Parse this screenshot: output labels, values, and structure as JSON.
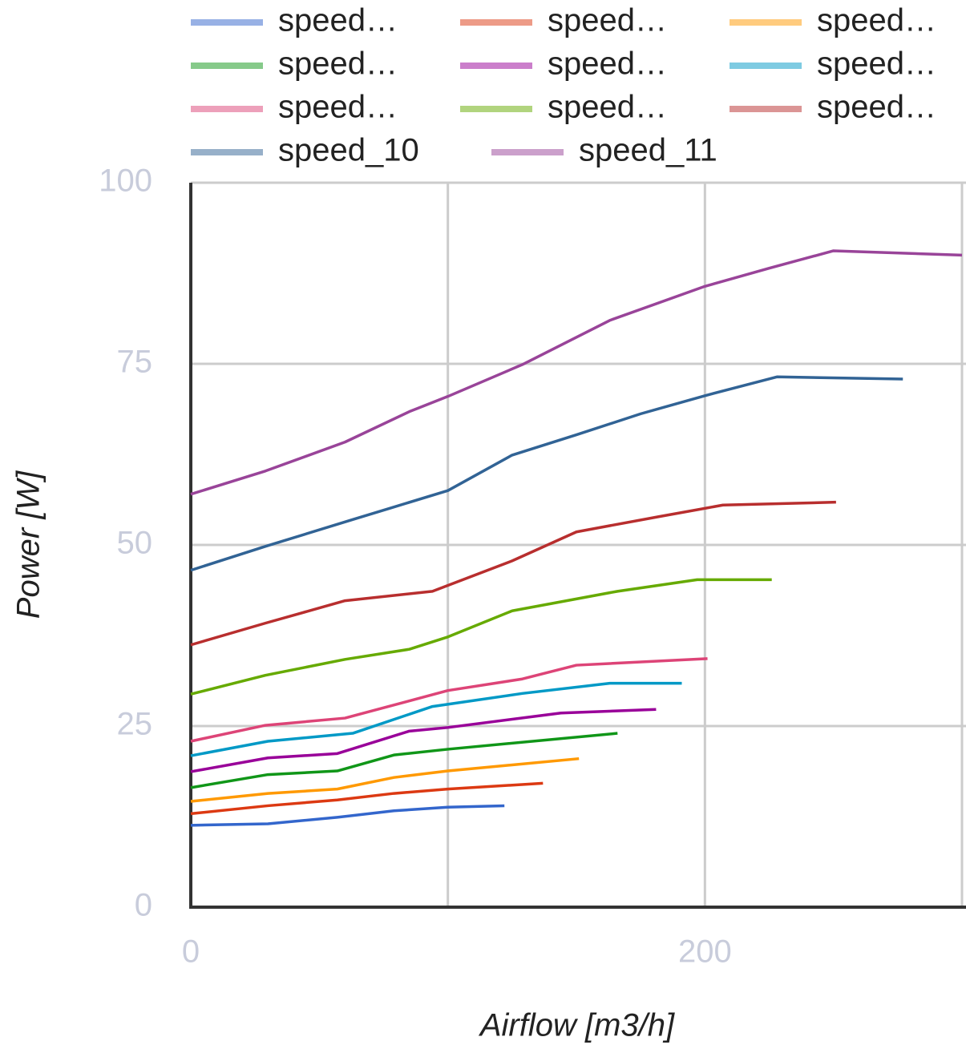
{
  "chart_data": {
    "type": "line",
    "xlabel": "Airflow [m3/h]",
    "ylabel": "Power [W]",
    "xlim": [
      0,
      300
    ],
    "ylim": [
      0,
      100
    ],
    "xticks": [
      0,
      200
    ],
    "xgrid_lines": [
      100,
      200,
      300
    ],
    "yticks": [
      0,
      25,
      50,
      75,
      100
    ],
    "grid": true,
    "series": [
      {
        "name": "speed…",
        "color": "#3366cc",
        "x": [
          0,
          30,
          57,
          79,
          100,
          122
        ],
        "values": [
          11.3,
          11.5,
          12.4,
          13.3,
          13.8,
          14.0
        ]
      },
      {
        "name": "speed…",
        "color": "#dc3912",
        "x": [
          0,
          30,
          57,
          79,
          100,
          137
        ],
        "values": [
          12.9,
          14.0,
          14.8,
          15.7,
          16.3,
          17.1
        ]
      },
      {
        "name": "speed…",
        "color": "#ff9900",
        "x": [
          0,
          30,
          57,
          79,
          100,
          151
        ],
        "values": [
          14.6,
          15.7,
          16.3,
          17.9,
          18.8,
          20.5
        ]
      },
      {
        "name": "speed…",
        "color": "#109618",
        "x": [
          0,
          30,
          57,
          79,
          100,
          166
        ],
        "values": [
          16.5,
          18.3,
          18.8,
          21.0,
          21.8,
          24.0
        ]
      },
      {
        "name": "speed…",
        "color": "#990099",
        "x": [
          0,
          30,
          57,
          85,
          100,
          144,
          181
        ],
        "values": [
          18.7,
          20.6,
          21.2,
          24.3,
          24.8,
          26.8,
          27.3
        ]
      },
      {
        "name": "speed…",
        "color": "#0099c6",
        "x": [
          0,
          30,
          63,
          94,
          129,
          163,
          191
        ],
        "values": [
          20.9,
          22.9,
          24.0,
          27.7,
          29.5,
          30.9,
          30.9
        ]
      },
      {
        "name": "speed…",
        "color": "#dd4477",
        "x": [
          0,
          29,
          60,
          100,
          129,
          150,
          201
        ],
        "values": [
          22.9,
          25.1,
          26.1,
          29.9,
          31.5,
          33.4,
          34.3
        ]
      },
      {
        "name": "speed…",
        "color": "#66aa00",
        "x": [
          0,
          29,
          60,
          85,
          100,
          125,
          166,
          197,
          226
        ],
        "values": [
          29.4,
          32.0,
          34.2,
          35.6,
          37.3,
          40.9,
          43.6,
          45.2,
          45.2
        ]
      },
      {
        "name": "speed…",
        "color": "#b82e2e",
        "x": [
          0,
          29,
          60,
          94,
          125,
          150,
          182,
          207,
          251
        ],
        "values": [
          36.2,
          39.2,
          42.3,
          43.6,
          47.8,
          51.8,
          53.9,
          55.5,
          55.9
        ]
      },
      {
        "name": "speed_10",
        "color": "#316395",
        "x": [
          0,
          29,
          63,
          100,
          125,
          150,
          175,
          200,
          228,
          277
        ],
        "values": [
          46.5,
          49.8,
          53.5,
          57.5,
          62.4,
          65.2,
          68.1,
          70.6,
          73.2,
          72.9
        ]
      },
      {
        "name": "speed_11",
        "color": "#994499",
        "x": [
          0,
          29,
          60,
          85,
          100,
          129,
          163,
          200,
          225,
          250,
          300
        ],
        "values": [
          57.0,
          60.2,
          64.2,
          68.4,
          70.5,
          74.9,
          81.0,
          85.7,
          88.2,
          90.6,
          90.0
        ]
      }
    ]
  }
}
